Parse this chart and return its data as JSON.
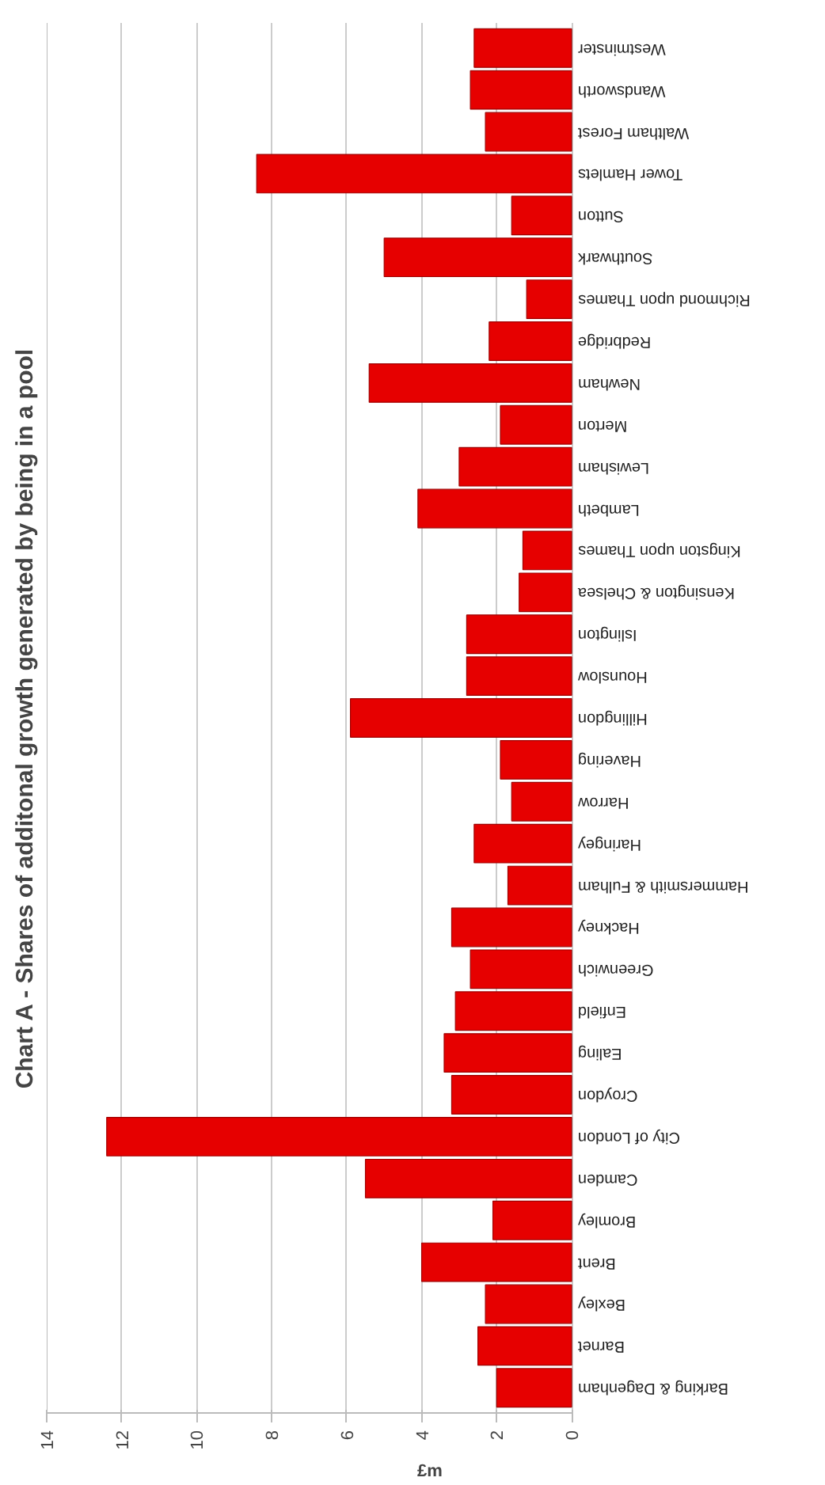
{
  "chart_data": {
    "type": "bar",
    "orientation": "horizontal",
    "title": "Chart A - Shares of additonal growth generated by being in a pool",
    "xlabel": "£m",
    "categories": [
      "Westminster",
      "Wandsworth",
      "Waltham Forest",
      "Tower Hamlets",
      "Sutton",
      "Southwark",
      "Richmond upon Thames",
      "Redbridge",
      "Newham",
      "Merton",
      "Lewisham",
      "Lambeth",
      "Kingston upon Thames",
      "Kensington & Chelsea",
      "Islington",
      "Hounslow",
      "Hillingdon",
      "Havering",
      "Harrow",
      "Haringey",
      "Hammersmith & Fulham",
      "Hackney",
      "Greenwich",
      "Enfield",
      "Ealing",
      "Croydon",
      "City of London",
      "Camden",
      "Bromley",
      "Brent",
      "Bexley",
      "Barnet",
      "Barking & Dagenham"
    ],
    "values": [
      2.6,
      2.7,
      2.3,
      8.4,
      1.6,
      5.0,
      1.2,
      2.2,
      5.4,
      1.9,
      3.0,
      4.1,
      1.3,
      1.4,
      2.8,
      2.8,
      5.9,
      1.9,
      1.6,
      2.6,
      1.7,
      3.2,
      2.7,
      3.1,
      3.4,
      3.2,
      12.4,
      5.5,
      2.1,
      4.0,
      2.3,
      2.5,
      2.0
    ],
    "color": "#e60000",
    "xlim": [
      14,
      0
    ],
    "xticks": [
      0,
      2,
      4,
      6,
      8,
      10,
      12,
      14
    ],
    "grid": "x"
  }
}
